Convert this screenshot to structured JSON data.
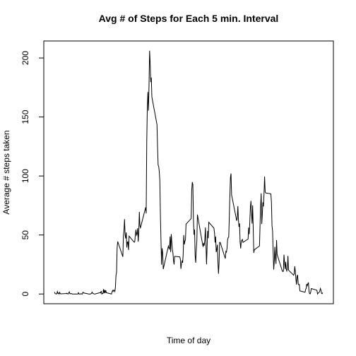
{
  "chart_data": {
    "type": "line",
    "title": "Avg # of Steps for Each 5 min. Interval",
    "xlabel": "Time of day",
    "ylabel": "Average # steps taken",
    "xlim": [
      -94.2,
      2449.2
    ],
    "ylim": [
      -8.25,
      214.42
    ],
    "yticks": [
      0,
      50,
      100,
      150,
      200
    ],
    "x": [
      0,
      5,
      10,
      15,
      20,
      25,
      30,
      35,
      40,
      45,
      50,
      55,
      100,
      105,
      110,
      115,
      120,
      125,
      130,
      135,
      140,
      145,
      150,
      155,
      200,
      205,
      210,
      215,
      220,
      225,
      230,
      235,
      240,
      245,
      250,
      255,
      300,
      305,
      310,
      315,
      320,
      325,
      330,
      335,
      340,
      345,
      350,
      355,
      400,
      405,
      410,
      415,
      420,
      425,
      430,
      435,
      440,
      445,
      450,
      455,
      500,
      505,
      510,
      515,
      520,
      525,
      530,
      535,
      540,
      545,
      550,
      555,
      600,
      605,
      610,
      615,
      620,
      625,
      630,
      635,
      640,
      645,
      650,
      655,
      700,
      705,
      710,
      715,
      720,
      725,
      730,
      735,
      740,
      745,
      750,
      755,
      800,
      805,
      810,
      815,
      820,
      825,
      830,
      835,
      840,
      845,
      850,
      855,
      900,
      905,
      910,
      915,
      920,
      925,
      930,
      935,
      940,
      945,
      950,
      955,
      1000,
      1005,
      1010,
      1015,
      1020,
      1025,
      1030,
      1035,
      1040,
      1045,
      1050,
      1055,
      1100,
      1105,
      1110,
      1115,
      1120,
      1125,
      1130,
      1135,
      1140,
      1145,
      1150,
      1155,
      1200,
      1205,
      1210,
      1215,
      1220,
      1225,
      1230,
      1235,
      1240,
      1245,
      1250,
      1255,
      1300,
      1305,
      1310,
      1315,
      1320,
      1325,
      1330,
      1335,
      1340,
      1345,
      1350,
      1355,
      1400,
      1405,
      1410,
      1415,
      1420,
      1425,
      1430,
      1435,
      1440,
      1445,
      1450,
      1455,
      1500,
      1505,
      1510,
      1515,
      1520,
      1525,
      1530,
      1535,
      1540,
      1545,
      1550,
      1555,
      1600,
      1605,
      1610,
      1615,
      1620,
      1625,
      1630,
      1635,
      1640,
      1645,
      1650,
      1655,
      1700,
      1705,
      1710,
      1715,
      1720,
      1725,
      1730,
      1735,
      1740,
      1745,
      1750,
      1755,
      1800,
      1805,
      1810,
      1815,
      1820,
      1825,
      1830,
      1835,
      1840,
      1845,
      1850,
      1855,
      1900,
      1905,
      1910,
      1915,
      1920,
      1925,
      1930,
      1935,
      1940,
      1945,
      1950,
      1955,
      2000,
      2005,
      2010,
      2015,
      2020,
      2025,
      2030,
      2035,
      2040,
      2045,
      2050,
      2055,
      2100,
      2105,
      2110,
      2115,
      2120,
      2125,
      2130,
      2135,
      2140,
      2145,
      2150,
      2155,
      2200,
      2205,
      2210,
      2215,
      2220,
      2225,
      2230,
      2235,
      2240,
      2245,
      2250,
      2255,
      2300,
      2305,
      2310,
      2315,
      2320,
      2325,
      2330,
      2335,
      2340,
      2345,
      2350,
      2355
    ],
    "series": [
      {
        "color": "#000000",
        "values": [
          1.72,
          0.34,
          0.13,
          0.15,
          0.08,
          2.09,
          0.53,
          0.87,
          0,
          1.47,
          0.3,
          0.13,
          0.32,
          0.68,
          0.15,
          0.34,
          0,
          1.11,
          1.83,
          0.17,
          0.17,
          0.38,
          0.26,
          0,
          0,
          0,
          1.13,
          0,
          0,
          0.13,
          0,
          0.23,
          0,
          0,
          1.55,
          0.94,
          0,
          0,
          0,
          0,
          0.21,
          0.62,
          1.62,
          0.58,
          0.49,
          0.08,
          0,
          0,
          1.19,
          0.94,
          2.57,
          0,
          0.34,
          0.36,
          4.11,
          0.66,
          3.49,
          0.83,
          3.11,
          1.11,
          0,
          1.57,
          3,
          2.25,
          3.32,
          2.96,
          2.09,
          6.06,
          16.02,
          18.34,
          39.45,
          44.49,
          31.49,
          49.26,
          53.77,
          63.45,
          49.96,
          47.08,
          52.15,
          39.34,
          44.02,
          44.17,
          37.36,
          49.04,
          43.81,
          44.38,
          50.51,
          54.51,
          49.92,
          50.98,
          55.68,
          44.32,
          52.26,
          69.55,
          57.85,
          56.15,
          73.38,
          68.21,
          129.43,
          157.53,
          171.15,
          155.4,
          177.3,
          206.17,
          195.92,
          179.57,
          183.4,
          167.02,
          143.45,
          124.04,
          109.11,
          108.11,
          103.72,
          95.96,
          66.21,
          45.23,
          24.79,
          38.75,
          34.98,
          21.06,
          40.6,
          39.0,
          37.7,
          48.7,
          35.5,
          50.8,
          44.3,
          37.4,
          34.7,
          28.3,
          25.1,
          31.9,
          31.4,
          29.7,
          21.3,
          25.5,
          28.4,
          26.5,
          33.4,
          49.98,
          42.0,
          44.6,
          46.0,
          59.2,
          63.9,
          87.7,
          94.8,
          92.8,
          63.4,
          50.2,
          54.5,
          32.4,
          26.5,
          37.7,
          45.1,
          67.3,
          42.3,
          39.9,
          43.3,
          40.98,
          46.2,
          56.4,
          42.8,
          25.1,
          39.96,
          53.5,
          47.3,
          60.8,
          55.8,
          51.96,
          43.6,
          48.7,
          35.5,
          37.5,
          41.8,
          27.5,
          17.1,
          26.1,
          43.6,
          43.8,
          30.0,
          36.1,
          35.5,
          38.8,
          46.0,
          47.8,
          48.1,
          65.3,
          82.9,
          98.7,
          102.1,
          84.0,
          62.1,
          64.1,
          74.5,
          63.2,
          56.9,
          59.8,
          43.9,
          38.6,
          44.7,
          45.5,
          46.2,
          43.7,
          46.6,
          56.3,
          50.7,
          61.2,
          72.7,
          78.9,
          68.9,
          59.7,
          75.1,
          56.5,
          34.8,
          37.5,
          40.7,
          58.0,
          74.7,
          85.3,
          59.3,
          67.8,
          77.7,
          74.2,
          85.3,
          99.5,
          86.6,
          85.6,
          84.9,
          77.8,
          58.0,
          53.4,
          36.3,
          20.7,
          27.4,
          40.0,
          30.2,
          25.5,
          45.7,
          33.5,
          19.6,
          19.0,
          19.3,
          33.3,
          26.8,
          21.2,
          27.3,
          21.3,
          19.5,
          21.3,
          32.3,
          20.2,
          15.9,
          17.2,
          23.5,
          19.2,
          12.5,
          8.0,
          14.7,
          16.3,
          8.7,
          7.8,
          8.1,
          2.6,
          1.5,
          3.7,
          4.8,
          8.5,
          7.1,
          8.7,
          9.8,
          2.2,
          0.3,
          0.1,
          1.6,
          4.6,
          3.3,
          2.8,
          0,
          0.8,
          0.96,
          1.6,
          2.6,
          4.7,
          3.3,
          0.6,
          0.2,
          1.1
        ]
      }
    ]
  }
}
